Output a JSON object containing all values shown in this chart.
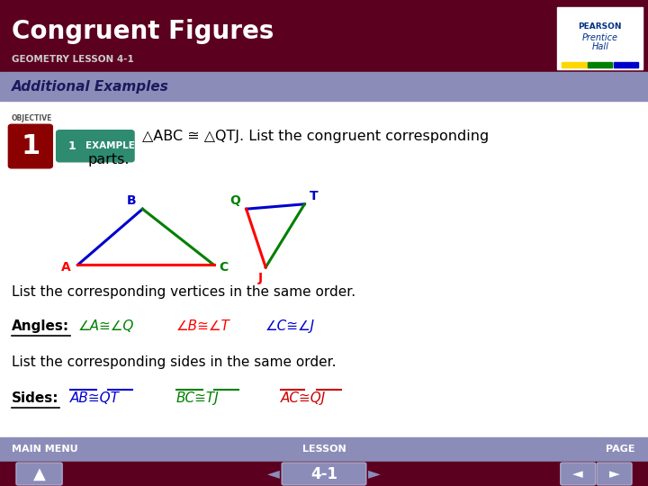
{
  "title": "Congruent Figures",
  "subtitle": "GEOMETRY LESSON 4-1",
  "header_bg": "#5C0020",
  "subheader_text": "Additional Examples",
  "subheader_bg": "#8B8DB8",
  "body_bg": "#FFFFFF",
  "footer_bg": "#5C0020",
  "footer_subbar_bg": "#8B8DB8",
  "text_color": "#000000",
  "triangle_ABC": {
    "A": [
      0.12,
      0.455
    ],
    "B": [
      0.22,
      0.57
    ],
    "C": [
      0.33,
      0.455
    ],
    "color_AB": "#0000CD",
    "color_BC": "#008000",
    "color_AC": "#FF0000"
  },
  "triangle_QTJ": {
    "Q": [
      0.38,
      0.57
    ],
    "T": [
      0.47,
      0.58
    ],
    "J": [
      0.41,
      0.45
    ],
    "color_QT": "#0000CD",
    "color_TJ": "#008000",
    "color_QJ": "#FF0000"
  }
}
